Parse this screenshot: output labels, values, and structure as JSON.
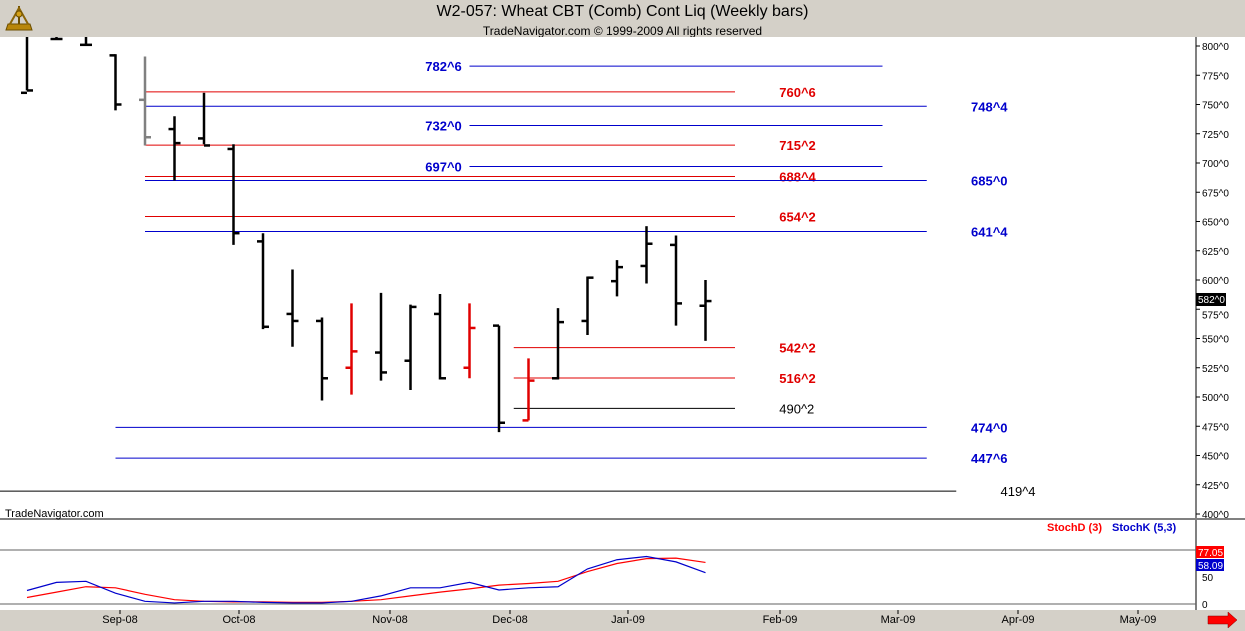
{
  "title": "W2-057:  Wheat CBT (Comb) Cont Liq  (Weekly bars)",
  "subtitle": "TradeNavigator.com © 1999-2009 All rights reserved",
  "watermark": "TradeNavigator.com",
  "last_price": "582^0",
  "stoch_legend": [
    {
      "label": "StochD (3)",
      "color": "#ff0000"
    },
    {
      "label": "StochK (5,3)",
      "color": "#0000cc"
    }
  ],
  "stoch_values": {
    "d": "77.05",
    "k": "58.09"
  },
  "chart_data": [
    {
      "type": "ohlc-bar",
      "title": "W2-057:  Wheat CBT (Comb) Cont Liq  (Weekly bars)",
      "x_labels": [
        "Sep-08",
        "Oct-08",
        "Nov-08",
        "Dec-08",
        "Jan-09",
        "Feb-09",
        "Mar-09",
        "Apr-09",
        "May-09"
      ],
      "y_ticks": [
        "800^0",
        "775^0",
        "750^0",
        "725^0",
        "700^0",
        "675^0",
        "650^0",
        "625^0",
        "600^0",
        "575^0",
        "550^0",
        "525^0",
        "500^0",
        "475^0",
        "450^0",
        "425^0",
        "400^0"
      ],
      "ylim": [
        400,
        805
      ],
      "bars": [
        {
          "week": 0,
          "o": 760,
          "h": 808,
          "l": 762,
          "c": 762,
          "color": "black"
        },
        {
          "week": 1,
          "o": 806,
          "h": 808,
          "l": 806,
          "c": 806,
          "color": "black"
        },
        {
          "week": 2,
          "o": 801,
          "h": 808,
          "l": 801,
          "c": 801,
          "color": "black"
        },
        {
          "week": 3,
          "o": 792,
          "h": 793,
          "l": 745,
          "c": 750,
          "color": "black"
        },
        {
          "week": 4,
          "o": 754,
          "h": 791,
          "l": 715,
          "c": 722,
          "color": "gray"
        },
        {
          "week": 5,
          "o": 729,
          "h": 740,
          "l": 685,
          "c": 717,
          "color": "black"
        },
        {
          "week": 6,
          "o": 721,
          "h": 760,
          "l": 716,
          "c": 715,
          "color": "black"
        },
        {
          "week": 7,
          "o": 712,
          "h": 716,
          "l": 630,
          "c": 640,
          "color": "black"
        },
        {
          "week": 8,
          "o": 633,
          "h": 640,
          "l": 558,
          "c": 560,
          "color": "black"
        },
        {
          "week": 9,
          "o": 571,
          "h": 609,
          "l": 543,
          "c": 565,
          "color": "black"
        },
        {
          "week": 10,
          "o": 565,
          "h": 568,
          "l": 497,
          "c": 516,
          "color": "black"
        },
        {
          "week": 11,
          "o": 525,
          "h": 580,
          "l": 502,
          "c": 539,
          "color": "red"
        },
        {
          "week": 12,
          "o": 538,
          "h": 589,
          "l": 514,
          "c": 521,
          "color": "black"
        },
        {
          "week": 13,
          "o": 531,
          "h": 579,
          "l": 506,
          "c": 577,
          "color": "black"
        },
        {
          "week": 14,
          "o": 571,
          "h": 588,
          "l": 515,
          "c": 516,
          "color": "black"
        },
        {
          "week": 15,
          "o": 525,
          "h": 580,
          "l": 516,
          "c": 559,
          "color": "red"
        },
        {
          "week": 16,
          "o": 561,
          "h": 561,
          "l": 470,
          "c": 478,
          "color": "black"
        },
        {
          "week": 17,
          "o": 480,
          "h": 533,
          "l": 480,
          "c": 514,
          "color": "red"
        },
        {
          "week": 18,
          "o": 516,
          "h": 576,
          "l": 515,
          "c": 564,
          "color": "black"
        },
        {
          "week": 19,
          "o": 565,
          "h": 603,
          "l": 553,
          "c": 602,
          "color": "black"
        },
        {
          "week": 20,
          "o": 599,
          "h": 617,
          "l": 586,
          "c": 611,
          "color": "black"
        },
        {
          "week": 21,
          "o": 612,
          "h": 646,
          "l": 597,
          "c": 631,
          "color": "black"
        },
        {
          "week": 22,
          "o": 630,
          "h": 638,
          "l": 561,
          "c": 580,
          "color": "black"
        },
        {
          "week": 23,
          "o": 578,
          "h": 600,
          "l": 548,
          "c": 582,
          "color": "black"
        }
      ],
      "levels": [
        {
          "label": "782^6",
          "value": 782.75,
          "color": "blue",
          "from_week": 15,
          "to_week": 29,
          "label_week": 13.5
        },
        {
          "label": "760^6",
          "value": 760.75,
          "color": "red",
          "from_week": 4,
          "to_week": 24,
          "label_week": 25.5
        },
        {
          "label": "748^4",
          "value": 748.5,
          "color": "blue",
          "from_week": 4,
          "to_week": 30.5,
          "label_week": 32
        },
        {
          "label": "732^0",
          "value": 732,
          "color": "blue",
          "from_week": 15,
          "to_week": 29,
          "label_week": 13.5
        },
        {
          "label": "715^2",
          "value": 715.25,
          "color": "red",
          "from_week": 4,
          "to_week": 24,
          "label_week": 25.5
        },
        {
          "label": "697^0",
          "value": 697,
          "color": "blue",
          "from_week": 15,
          "to_week": 29,
          "label_week": 13.5
        },
        {
          "label": "688^4",
          "value": 688.5,
          "color": "red",
          "from_week": 4,
          "to_week": 24,
          "label_week": 25.5
        },
        {
          "label": "685^0",
          "value": 685,
          "color": "blue",
          "from_week": 4,
          "to_week": 30.5,
          "label_week": 32
        },
        {
          "label": "654^2",
          "value": 654.25,
          "color": "red",
          "from_week": 4,
          "to_week": 24,
          "label_week": 25.5
        },
        {
          "label": "641^4",
          "value": 641.5,
          "color": "blue",
          "from_week": 4,
          "to_week": 30.5,
          "label_week": 32
        },
        {
          "label": "542^2",
          "value": 542.25,
          "color": "red",
          "from_week": 16.5,
          "to_week": 24,
          "label_week": 25.5
        },
        {
          "label": "516^2",
          "value": 516.25,
          "color": "red",
          "from_week": 16.5,
          "to_week": 24,
          "label_week": 25.5
        },
        {
          "label": "490^2",
          "value": 490.25,
          "color": "black",
          "from_week": 16.5,
          "to_week": 24,
          "label_week": 25.5
        },
        {
          "label": "474^0",
          "value": 474,
          "color": "blue",
          "from_week": 3,
          "to_week": 30.5,
          "label_week": 32
        },
        {
          "label": "447^6",
          "value": 447.75,
          "color": "blue",
          "from_week": 3,
          "to_week": 30.5,
          "label_week": 32
        },
        {
          "label": "419^4",
          "value": 419.5,
          "color": "black",
          "from_week": -0.5,
          "to_week": 31.5,
          "label_week": 33
        }
      ]
    },
    {
      "type": "line",
      "title": "",
      "ylim": [
        0,
        100
      ],
      "y_ticks": [
        "100",
        "50",
        "0"
      ],
      "series": [
        {
          "name": "StochD (3)",
          "color": "#ff0000",
          "values": [
            12,
            22,
            32,
            30,
            18,
            8,
            5,
            4,
            4,
            3,
            3,
            5,
            8,
            15,
            22,
            28,
            35,
            38,
            42,
            60,
            75,
            84,
            85,
            77
          ]
        },
        {
          "name": "StochK (5,3)",
          "color": "#0000cc",
          "values": [
            25,
            40,
            42,
            20,
            5,
            2,
            5,
            5,
            3,
            2,
            2,
            5,
            15,
            30,
            30,
            40,
            26,
            30,
            32,
            65,
            82,
            88,
            78,
            58
          ]
        }
      ]
    }
  ]
}
